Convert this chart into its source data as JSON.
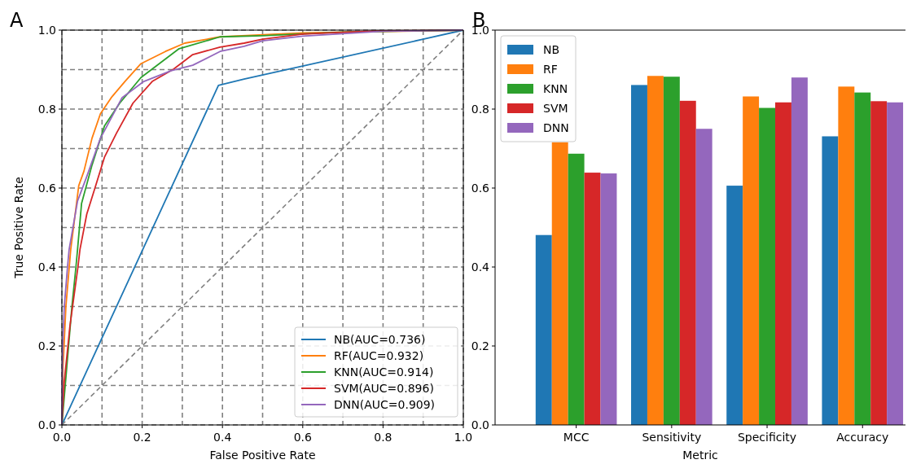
{
  "chart_data": [
    {
      "type": "line",
      "xlabel": "False Positive Rate",
      "ylabel": "True Positive Rate",
      "annotations": [
        "A"
      ],
      "xlim": [
        0,
        1
      ],
      "ylim": [
        0,
        1
      ],
      "xticks": [
        {
          "value": 0,
          "label": "0.0"
        },
        {
          "value": 0.1,
          "label": null
        },
        0.2,
        {
          "value": 0.3,
          "label": null
        },
        0.4,
        {
          "value": 0.5,
          "label": null
        },
        0.6,
        {
          "value": 0.7,
          "label": null
        },
        0.8,
        {
          "value": 0.9,
          "label": null
        },
        {
          "value": 1,
          "label": "1.0"
        }
      ],
      "yticks": [
        {
          "value": 0,
          "label": "0.0"
        },
        {
          "value": 0.1,
          "label": null
        },
        0.2,
        {
          "value": 0.3,
          "label": null
        },
        0.4,
        {
          "value": 0.5,
          "label": null
        },
        0.6,
        {
          "value": 0.7,
          "label": null
        },
        0.8,
        {
          "value": 0.9,
          "label": null
        },
        {
          "value": 1,
          "label": "1.0"
        }
      ],
      "grid": true,
      "legend": "bottom right",
      "series": [
        {
          "name": "NB(AUC=0.736)",
          "color": "#1f77b4",
          "x": [
            0,
            0.39,
            0.454,
            0.9,
            1
          ],
          "values": [
            0,
            0.86,
            0.876,
            0.977,
            1
          ]
        },
        {
          "name": "RF(AUC=0.932)",
          "color": "#ff7f0e",
          "x": [
            0,
            0.003,
            0.01,
            0.022,
            0.042,
            0.055,
            0.075,
            0.096,
            0.123,
            0.157,
            0.197,
            0.258,
            0.306,
            0.394,
            0.6,
            1
          ],
          "values": [
            0,
            0.15,
            0.3,
            0.444,
            0.606,
            0.643,
            0.726,
            0.788,
            0.829,
            0.87,
            0.915,
            0.946,
            0.967,
            0.983,
            0.993,
            1
          ]
        },
        {
          "name": "KNN(AUC=0.914)",
          "color": "#2ca02c",
          "x": [
            0,
            0.025,
            0.035,
            0.039,
            0.049,
            0.075,
            0.106,
            0.144,
            0.197,
            0.292,
            0.394,
            0.5,
            0.7,
            1
          ],
          "values": [
            0,
            0.3,
            0.4,
            0.444,
            0.561,
            0.658,
            0.757,
            0.815,
            0.88,
            0.953,
            0.983,
            0.986,
            0.995,
            1
          ]
        },
        {
          "name": "SVM(AUC=0.896)",
          "color": "#d62728",
          "x": [
            0,
            0.005,
            0.02,
            0.04,
            0.045,
            0.062,
            0.083,
            0.106,
            0.136,
            0.177,
            0.225,
            0.278,
            0.326,
            0.394,
            0.454,
            0.5,
            0.6,
            0.76,
            0.8,
            1
          ],
          "values": [
            0,
            0.1,
            0.25,
            0.4,
            0.444,
            0.534,
            0.602,
            0.678,
            0.739,
            0.815,
            0.87,
            0.901,
            0.938,
            0.957,
            0.967,
            0.977,
            0.99,
            0.997,
            0.998,
            1
          ]
        },
        {
          "name": "DNN(AUC=0.909)",
          "color": "#9467bd",
          "x": [
            0,
            0.002,
            0.006,
            0.014,
            0.018,
            0.039,
            0.062,
            0.096,
            0.15,
            0.204,
            0.272,
            0.326,
            0.394,
            0.454,
            0.5,
            0.6,
            0.8,
            1
          ],
          "values": [
            0,
            0.2,
            0.3,
            0.4,
            0.444,
            0.567,
            0.629,
            0.726,
            0.829,
            0.87,
            0.897,
            0.911,
            0.946,
            0.959,
            0.973,
            0.985,
            0.997,
            1
          ]
        },
        {
          "color": "#808080",
          "line_style": "dashed",
          "x": [
            0,
            1
          ],
          "values": [
            0,
            1
          ]
        }
      ]
    },
    {
      "type": "bar",
      "xlabel": "Metric",
      "annotations": [
        "B"
      ],
      "categories": [
        "MCC",
        "Sensitivity",
        "Specificity",
        "Accuracy"
      ],
      "ylim": [
        0,
        1
      ],
      "yticks": [
        {
          "value": 0,
          "label": "0.0"
        },
        0.2,
        0.4,
        0.6,
        0.8,
        {
          "value": 1,
          "label": "1.0"
        }
      ],
      "legend": "top left",
      "series": [
        {
          "name": "NB",
          "color": "#1f77b4",
          "values": [
            0.481,
            0.861,
            0.606,
            0.731
          ]
        },
        {
          "name": "RF",
          "color": "#ff7f0e",
          "values": [
            0.716,
            0.884,
            0.832,
            0.857
          ]
        },
        {
          "name": "KNN",
          "color": "#2ca02c",
          "values": [
            0.687,
            0.882,
            0.803,
            0.842
          ]
        },
        {
          "name": "SVM",
          "color": "#d62728",
          "values": [
            0.639,
            0.821,
            0.817,
            0.82
          ]
        },
        {
          "name": "DNN",
          "color": "#9467bd",
          "values": [
            0.637,
            0.75,
            0.88,
            0.817
          ]
        }
      ]
    }
  ]
}
